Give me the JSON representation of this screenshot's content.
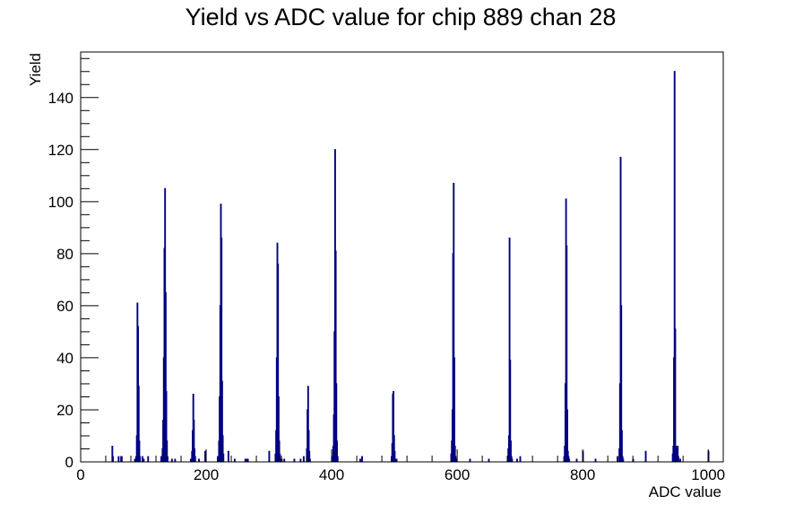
{
  "chart_data": {
    "type": "bar",
    "title": "Yield vs ADC value for chip 889 chan 28",
    "xlabel": "ADC value",
    "ylabel": "Yield",
    "xlim": [
      0,
      1024
    ],
    "ylim": [
      0,
      157.5
    ],
    "grid": false,
    "legend": "none",
    "x_ticks": [
      "0",
      "200",
      "400",
      "600",
      "800",
      "1000"
    ],
    "y_ticks": [
      "0",
      "20",
      "40",
      "60",
      "80",
      "100",
      "120",
      "140"
    ],
    "series": [
      {
        "color": "#000080",
        "points": [
          [
            50,
            6
          ],
          [
            51,
            2
          ],
          [
            60,
            2
          ],
          [
            64,
            2
          ],
          [
            65,
            2
          ],
          [
            86,
            1
          ],
          [
            88,
            2
          ],
          [
            89,
            10
          ],
          [
            90,
            61
          ],
          [
            91,
            52
          ],
          [
            92,
            29
          ],
          [
            93,
            8
          ],
          [
            94,
            2
          ],
          [
            98,
            2
          ],
          [
            100,
            1
          ],
          [
            107,
            2
          ],
          [
            128,
            2
          ],
          [
            130,
            5
          ],
          [
            131,
            16
          ],
          [
            132,
            40
          ],
          [
            133,
            82
          ],
          [
            134,
            105
          ],
          [
            135,
            65
          ],
          [
            136,
            27
          ],
          [
            137,
            8
          ],
          [
            138,
            2
          ],
          [
            145,
            1
          ],
          [
            150,
            1
          ],
          [
            175,
            1
          ],
          [
            177,
            4
          ],
          [
            178,
            12
          ],
          [
            179,
            26
          ],
          [
            180,
            16
          ],
          [
            181,
            5
          ],
          [
            182,
            2
          ],
          [
            188,
            1
          ],
          [
            198,
            4
          ],
          [
            218,
            2
          ],
          [
            220,
            8
          ],
          [
            221,
            25
          ],
          [
            222,
            60
          ],
          [
            223,
            99
          ],
          [
            224,
            86
          ],
          [
            225,
            31
          ],
          [
            226,
            10
          ],
          [
            227,
            3
          ],
          [
            235,
            4
          ],
          [
            245,
            1
          ],
          [
            262,
            1
          ],
          [
            263,
            1
          ],
          [
            265,
            1
          ],
          [
            266,
            1
          ],
          [
            300,
            4
          ],
          [
            310,
            3
          ],
          [
            311,
            12
          ],
          [
            312,
            40
          ],
          [
            313,
            84
          ],
          [
            314,
            76
          ],
          [
            315,
            25
          ],
          [
            316,
            8
          ],
          [
            317,
            3
          ],
          [
            318,
            1
          ],
          [
            320,
            1
          ],
          [
            324,
            1
          ],
          [
            340,
            1
          ],
          [
            350,
            1
          ],
          [
            355,
            2
          ],
          [
            360,
            5
          ],
          [
            361,
            20
          ],
          [
            362,
            29
          ],
          [
            363,
            12
          ],
          [
            364,
            4
          ],
          [
            365,
            1
          ],
          [
            400,
            2
          ],
          [
            402,
            6
          ],
          [
            403,
            18
          ],
          [
            404,
            50
          ],
          [
            405,
            120
          ],
          [
            406,
            81
          ],
          [
            407,
            30
          ],
          [
            408,
            8
          ],
          [
            409,
            2
          ],
          [
            445,
            1
          ],
          [
            448,
            2
          ],
          [
            495,
            2
          ],
          [
            496,
            7
          ],
          [
            497,
            26
          ],
          [
            498,
            27
          ],
          [
            499,
            10
          ],
          [
            500,
            4
          ],
          [
            501,
            1
          ],
          [
            503,
            1
          ],
          [
            590,
            3
          ],
          [
            591,
            8
          ],
          [
            592,
            20
          ],
          [
            593,
            80
          ],
          [
            594,
            107
          ],
          [
            595,
            40
          ],
          [
            596,
            6
          ],
          [
            597,
            2
          ],
          [
            598,
            1
          ],
          [
            620,
            1
          ],
          [
            650,
            1
          ],
          [
            680,
            2
          ],
          [
            681,
            5
          ],
          [
            682,
            10
          ],
          [
            683,
            86
          ],
          [
            684,
            39
          ],
          [
            685,
            8
          ],
          [
            686,
            2
          ],
          [
            687,
            1
          ],
          [
            695,
            1
          ],
          [
            700,
            2
          ],
          [
            770,
            2
          ],
          [
            771,
            6
          ],
          [
            772,
            30
          ],
          [
            773,
            101
          ],
          [
            774,
            83
          ],
          [
            775,
            20
          ],
          [
            776,
            4
          ],
          [
            777,
            2
          ],
          [
            778,
            1
          ],
          [
            790,
            1
          ],
          [
            800,
            4
          ],
          [
            820,
            1
          ],
          [
            855,
            2
          ],
          [
            858,
            5
          ],
          [
            859,
            30
          ],
          [
            860,
            117
          ],
          [
            861,
            60
          ],
          [
            862,
            12
          ],
          [
            863,
            2
          ],
          [
            864,
            1
          ],
          [
            880,
            1
          ],
          [
            900,
            4
          ],
          [
            943,
            3
          ],
          [
            944,
            6
          ],
          [
            945,
            40
          ],
          [
            946,
            150
          ],
          [
            947,
            51
          ],
          [
            948,
            6
          ],
          [
            949,
            4
          ],
          [
            950,
            5
          ],
          [
            951,
            6
          ],
          [
            952,
            2
          ],
          [
            955,
            1
          ],
          [
            1000,
            4
          ]
        ]
      }
    ]
  }
}
